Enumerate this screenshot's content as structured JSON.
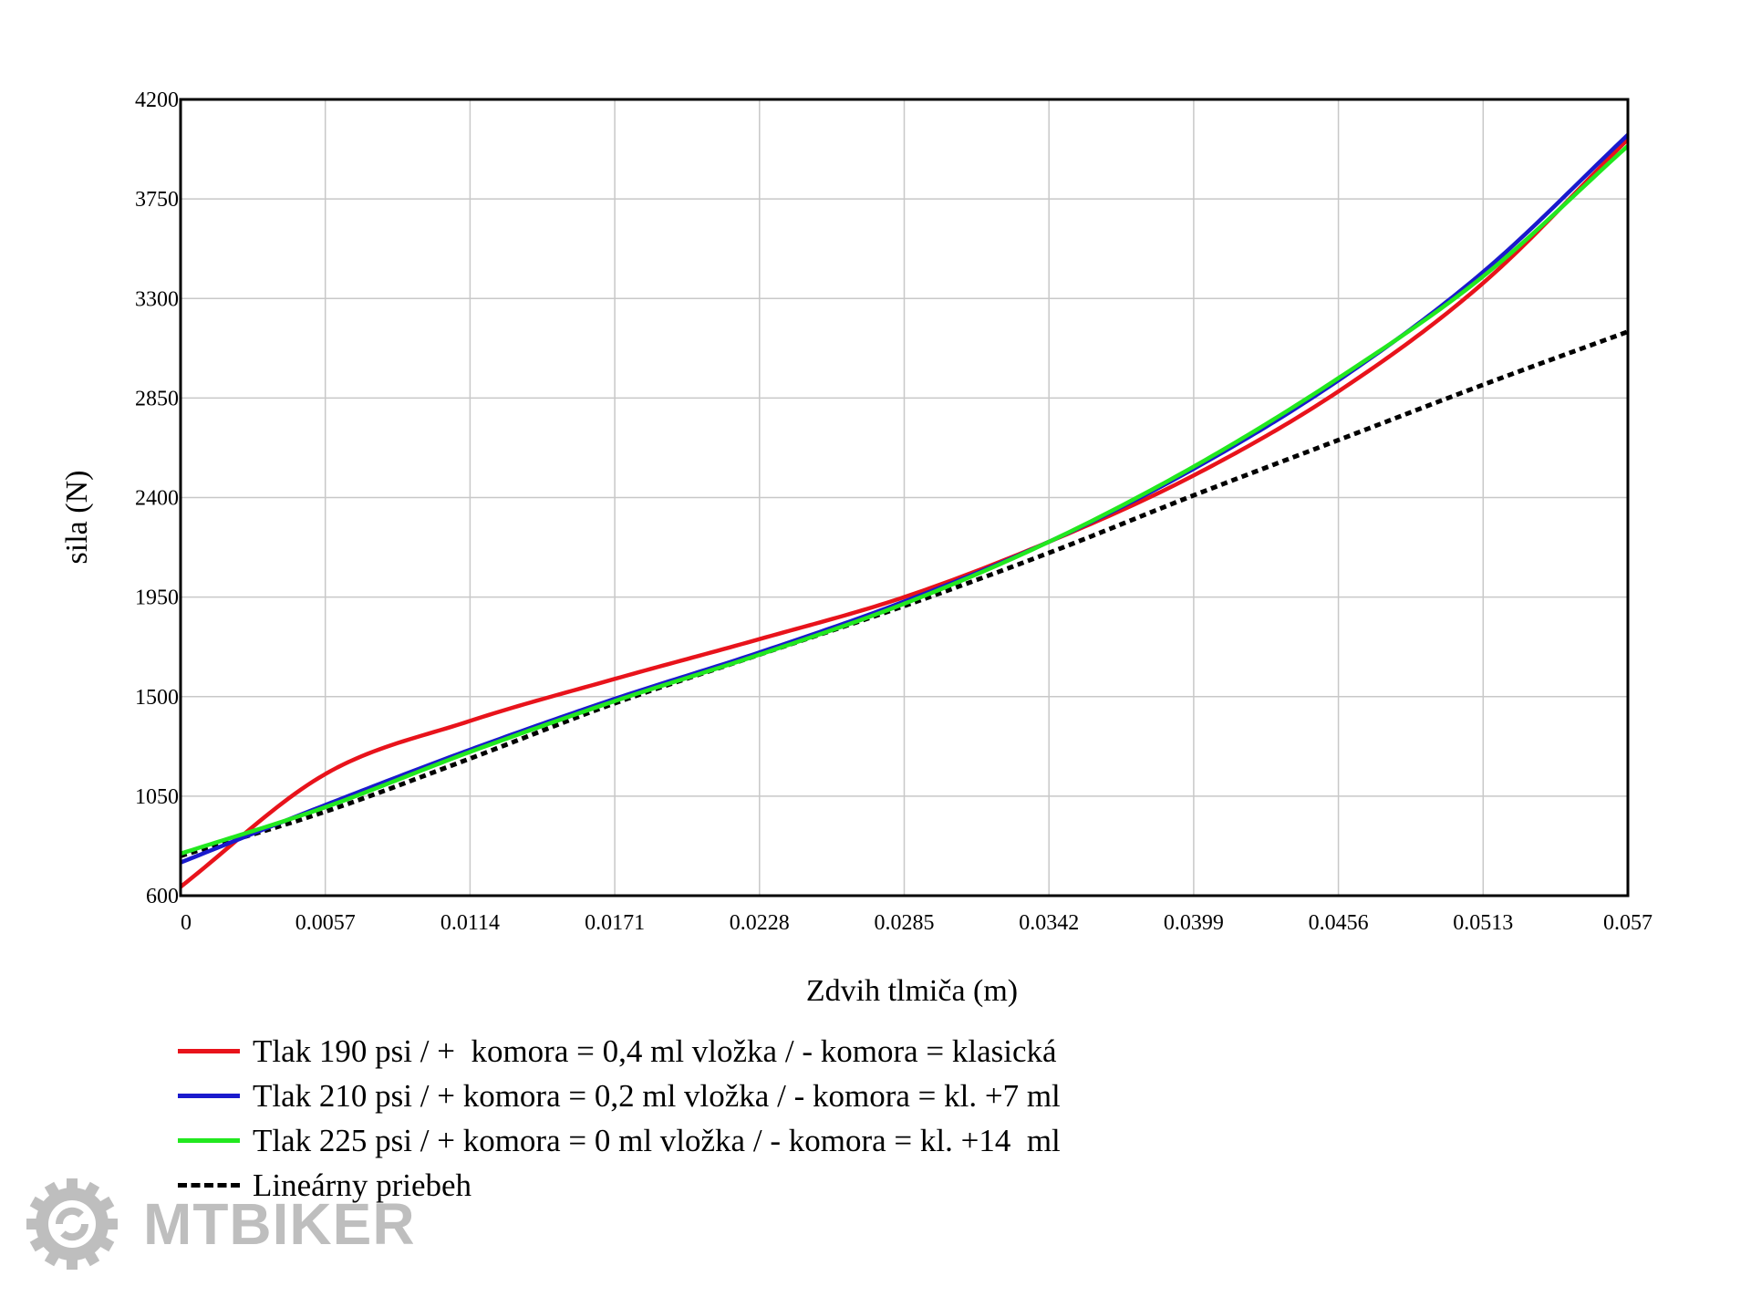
{
  "chart_data": {
    "type": "line",
    "title": "",
    "xlabel": "Zdvih tlmiča (m)",
    "ylabel": "sila (N)",
    "xlim": [
      0,
      0.057
    ],
    "ylim": [
      600,
      4200
    ],
    "xticks": [
      "0",
      "0.0057",
      "0.0114",
      "0.0171",
      "0.0228",
      "0.0285",
      "0.0342",
      "0.0399",
      "0.0456",
      "0.0513",
      "0.057"
    ],
    "yticks": [
      "600",
      "1050",
      "1500",
      "1950",
      "2400",
      "2850",
      "3300",
      "3750",
      "4200"
    ],
    "grid": true,
    "legend_position": "bottom-left",
    "x": [
      0,
      0.0057,
      0.0114,
      0.0171,
      0.0228,
      0.0285,
      0.0342,
      0.0399,
      0.0456,
      0.0513,
      0.057
    ],
    "series": [
      {
        "name": "Tlak 190 psi / +  komora = 0,4 ml vložka / - komora = klasická",
        "color": "#e8131b",
        "style": "solid",
        "values": [
          640,
          1150,
          1390,
          1580,
          1760,
          1950,
          2200,
          2500,
          2880,
          3370,
          4020
        ]
      },
      {
        "name": "Tlak 210 psi / + komora = 0,2 ml vložka / - komora = kl. +7 ml",
        "color": "#1a1acd",
        "style": "solid",
        "values": [
          750,
          1010,
          1260,
          1490,
          1700,
          1930,
          2200,
          2530,
          2930,
          3420,
          4040
        ]
      },
      {
        "name": "Tlak 225 psi / + komora = 0 ml vložka / - komora = kl. +14  ml",
        "color": "#22e81f",
        "style": "solid",
        "values": [
          790,
          1000,
          1250,
          1480,
          1690,
          1920,
          2200,
          2540,
          2940,
          3400,
          3990
        ]
      },
      {
        "name": "Lineárny priebeh",
        "color": "#000000",
        "style": "dashed",
        "values": [
          780,
          980,
          1220,
          1470,
          1690,
          1910,
          2150,
          2410,
          2660,
          2910,
          3150
        ]
      }
    ]
  },
  "watermark": {
    "text": "MTBIKER",
    "icon": "bike-chainring-logo-icon"
  }
}
